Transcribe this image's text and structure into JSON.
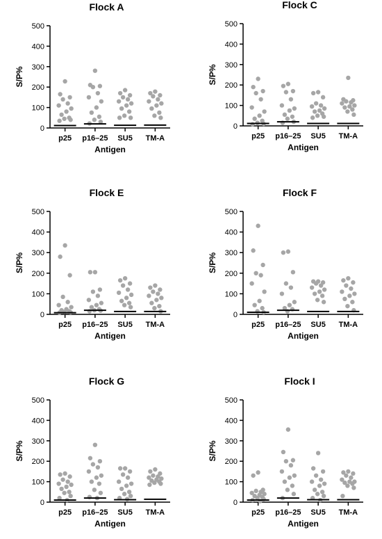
{
  "chart_data": [
    {
      "type": "scatter",
      "title": "Flock  A",
      "xlabel": "Antigen",
      "ylabel": "S/P%",
      "ylim": [
        0,
        500
      ],
      "yticks": [
        0,
        100,
        200,
        300,
        400,
        500
      ],
      "categories": [
        "p25",
        "p16–25",
        "SU5",
        "TM-A"
      ],
      "medians": [
        12,
        20,
        13,
        14
      ],
      "series": [
        {
          "category": "p25",
          "values": [
            228,
            165,
            150,
            140,
            120,
            110,
            95,
            80,
            65,
            50,
            45,
            40,
            35
          ]
        },
        {
          "category": "p16–25",
          "values": [
            280,
            210,
            205,
            200,
            170,
            150,
            130,
            100,
            75,
            55,
            40,
            30,
            22
          ]
        },
        {
          "category": "SU5",
          "values": [
            185,
            170,
            160,
            150,
            140,
            130,
            120,
            110,
            95,
            80,
            60,
            50,
            50
          ]
        },
        {
          "category": "TM-A",
          "values": [
            178,
            170,
            160,
            155,
            140,
            130,
            120,
            110,
            95,
            75,
            60,
            50
          ]
        }
      ]
    },
    {
      "type": "scatter",
      "title": "Flock C",
      "xlabel": "Antigen",
      "ylabel": "S/P%",
      "ylim": [
        0,
        500
      ],
      "yticks": [
        0,
        100,
        200,
        300,
        400,
        500
      ],
      "categories": [
        "p25",
        "p16–25",
        "SU5",
        "TM-A"
      ],
      "medians": [
        12,
        20,
        12,
        12
      ],
      "series": [
        {
          "category": "p25",
          "values": [
            230,
            190,
            170,
            160,
            130,
            90,
            70,
            50,
            35,
            25,
            15,
            10,
            8
          ]
        },
        {
          "category": "p16–25",
          "values": [
            205,
            195,
            170,
            165,
            130,
            100,
            85,
            75,
            55,
            45,
            35,
            20,
            15
          ]
        },
        {
          "category": "SU5",
          "values": [
            165,
            160,
            140,
            110,
            100,
            95,
            85,
            75,
            70,
            60,
            50,
            45,
            40
          ]
        },
        {
          "category": "TM-A",
          "values": [
            235,
            130,
            125,
            120,
            115,
            110,
            100,
            95,
            90,
            80,
            70,
            55
          ]
        }
      ]
    },
    {
      "type": "scatter",
      "title": "Flock  E",
      "xlabel": "Antigen",
      "ylabel": "S/P%",
      "ylim": [
        0,
        500
      ],
      "yticks": [
        0,
        100,
        200,
        300,
        400,
        500
      ],
      "categories": [
        "p25",
        "p16–25",
        "SU5",
        "TM-A"
      ],
      "medians": [
        8,
        20,
        14,
        14
      ],
      "series": [
        {
          "category": "p25",
          "values": [
            335,
            280,
            190,
            85,
            60,
            45,
            35,
            25,
            20,
            15,
            12,
            10,
            8
          ]
        },
        {
          "category": "p16–25",
          "values": [
            205,
            205,
            120,
            110,
            90,
            70,
            55,
            45,
            35,
            25,
            20,
            18,
            15
          ]
        },
        {
          "category": "SU5",
          "values": [
            175,
            165,
            150,
            140,
            120,
            105,
            95,
            80,
            65,
            55,
            45,
            35
          ]
        },
        {
          "category": "TM-A",
          "values": [
            140,
            130,
            120,
            110,
            100,
            90,
            80,
            70,
            55,
            40,
            30,
            15
          ]
        }
      ]
    },
    {
      "type": "scatter",
      "title": "Flock  F",
      "xlabel": "Antigen",
      "ylabel": "S/P%",
      "ylim": [
        0,
        500
      ],
      "yticks": [
        0,
        100,
        200,
        300,
        400,
        500
      ],
      "categories": [
        "p25",
        "p16–25",
        "SU5",
        "TM-A"
      ],
      "medians": [
        10,
        20,
        14,
        14
      ],
      "series": [
        {
          "category": "p25",
          "values": [
            430,
            310,
            240,
            200,
            190,
            150,
            110,
            65,
            45,
            30,
            15,
            10
          ]
        },
        {
          "category": "p16–25",
          "values": [
            305,
            300,
            205,
            150,
            130,
            100,
            60,
            45,
            30,
            25,
            15
          ]
        },
        {
          "category": "SU5",
          "values": [
            160,
            160,
            155,
            150,
            140,
            130,
            120,
            110,
            100,
            90,
            70,
            60
          ]
        },
        {
          "category": "TM-A",
          "values": [
            175,
            165,
            155,
            140,
            125,
            110,
            100,
            90,
            75,
            60,
            40,
            20
          ]
        }
      ]
    },
    {
      "type": "scatter",
      "title": "Flock G",
      "xlabel": "Antigen",
      "ylabel": "S/P%",
      "ylim": [
        0,
        500
      ],
      "yticks": [
        0,
        100,
        200,
        300,
        400,
        500
      ],
      "categories": [
        "p25",
        "p16–25",
        "SU5",
        "TM-A"
      ],
      "medians": [
        10,
        20,
        12,
        14
      ],
      "series": [
        {
          "category": "p25",
          "values": [
            140,
            135,
            125,
            110,
            100,
            90,
            85,
            75,
            65,
            50,
            45,
            30,
            20,
            10
          ]
        },
        {
          "category": "p16–25",
          "values": [
            280,
            215,
            200,
            185,
            170,
            150,
            130,
            120,
            100,
            90,
            60,
            45,
            25,
            20
          ]
        },
        {
          "category": "SU5",
          "values": [
            165,
            165,
            150,
            135,
            120,
            100,
            90,
            80,
            65,
            50,
            40,
            30,
            20,
            15
          ]
        },
        {
          "category": "TM-A",
          "values": [
            160,
            150,
            140,
            130,
            125,
            120,
            115,
            110,
            105,
            100,
            95,
            90,
            85
          ]
        }
      ]
    },
    {
      "type": "scatter",
      "title": "Flock  I",
      "xlabel": "Antigen",
      "ylabel": "S/P%",
      "ylim": [
        0,
        500
      ],
      "yticks": [
        0,
        100,
        200,
        300,
        400,
        500
      ],
      "categories": [
        "p25",
        "p16–25",
        "SU5",
        "TM-A"
      ],
      "medians": [
        10,
        20,
        12,
        12
      ],
      "series": [
        {
          "category": "p25",
          "values": [
            145,
            130,
            60,
            55,
            50,
            45,
            40,
            35,
            30,
            25,
            20,
            15,
            10,
            5
          ]
        },
        {
          "category": "p16–25",
          "values": [
            355,
            245,
            205,
            200,
            180,
            150,
            130,
            120,
            100,
            80,
            60,
            40,
            20
          ]
        },
        {
          "category": "SU5",
          "values": [
            240,
            165,
            150,
            130,
            110,
            100,
            90,
            80,
            60,
            50,
            40,
            30,
            20,
            10
          ]
        },
        {
          "category": "TM-A",
          "values": [
            150,
            145,
            140,
            130,
            120,
            110,
            100,
            100,
            95,
            90,
            80,
            70,
            30
          ]
        }
      ]
    }
  ]
}
